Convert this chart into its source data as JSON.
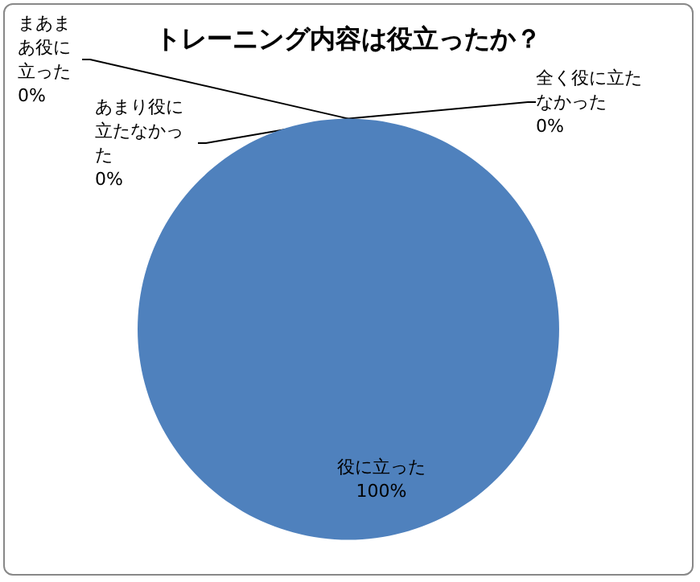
{
  "chart_data": {
    "type": "pie",
    "title": "トレーニング内容は役立ったか？",
    "categories": [
      "役に立った",
      "まあまあ役に立った",
      "あまり役に立たなかった",
      "全く役に立たなかった"
    ],
    "values": [
      100,
      0,
      0,
      0
    ],
    "value_labels": [
      "100%",
      "0%",
      "0%",
      "0%"
    ],
    "colors": [
      "#4f81bd",
      "#c0504d",
      "#9bbb59",
      "#8064a2"
    ],
    "legend": false
  }
}
